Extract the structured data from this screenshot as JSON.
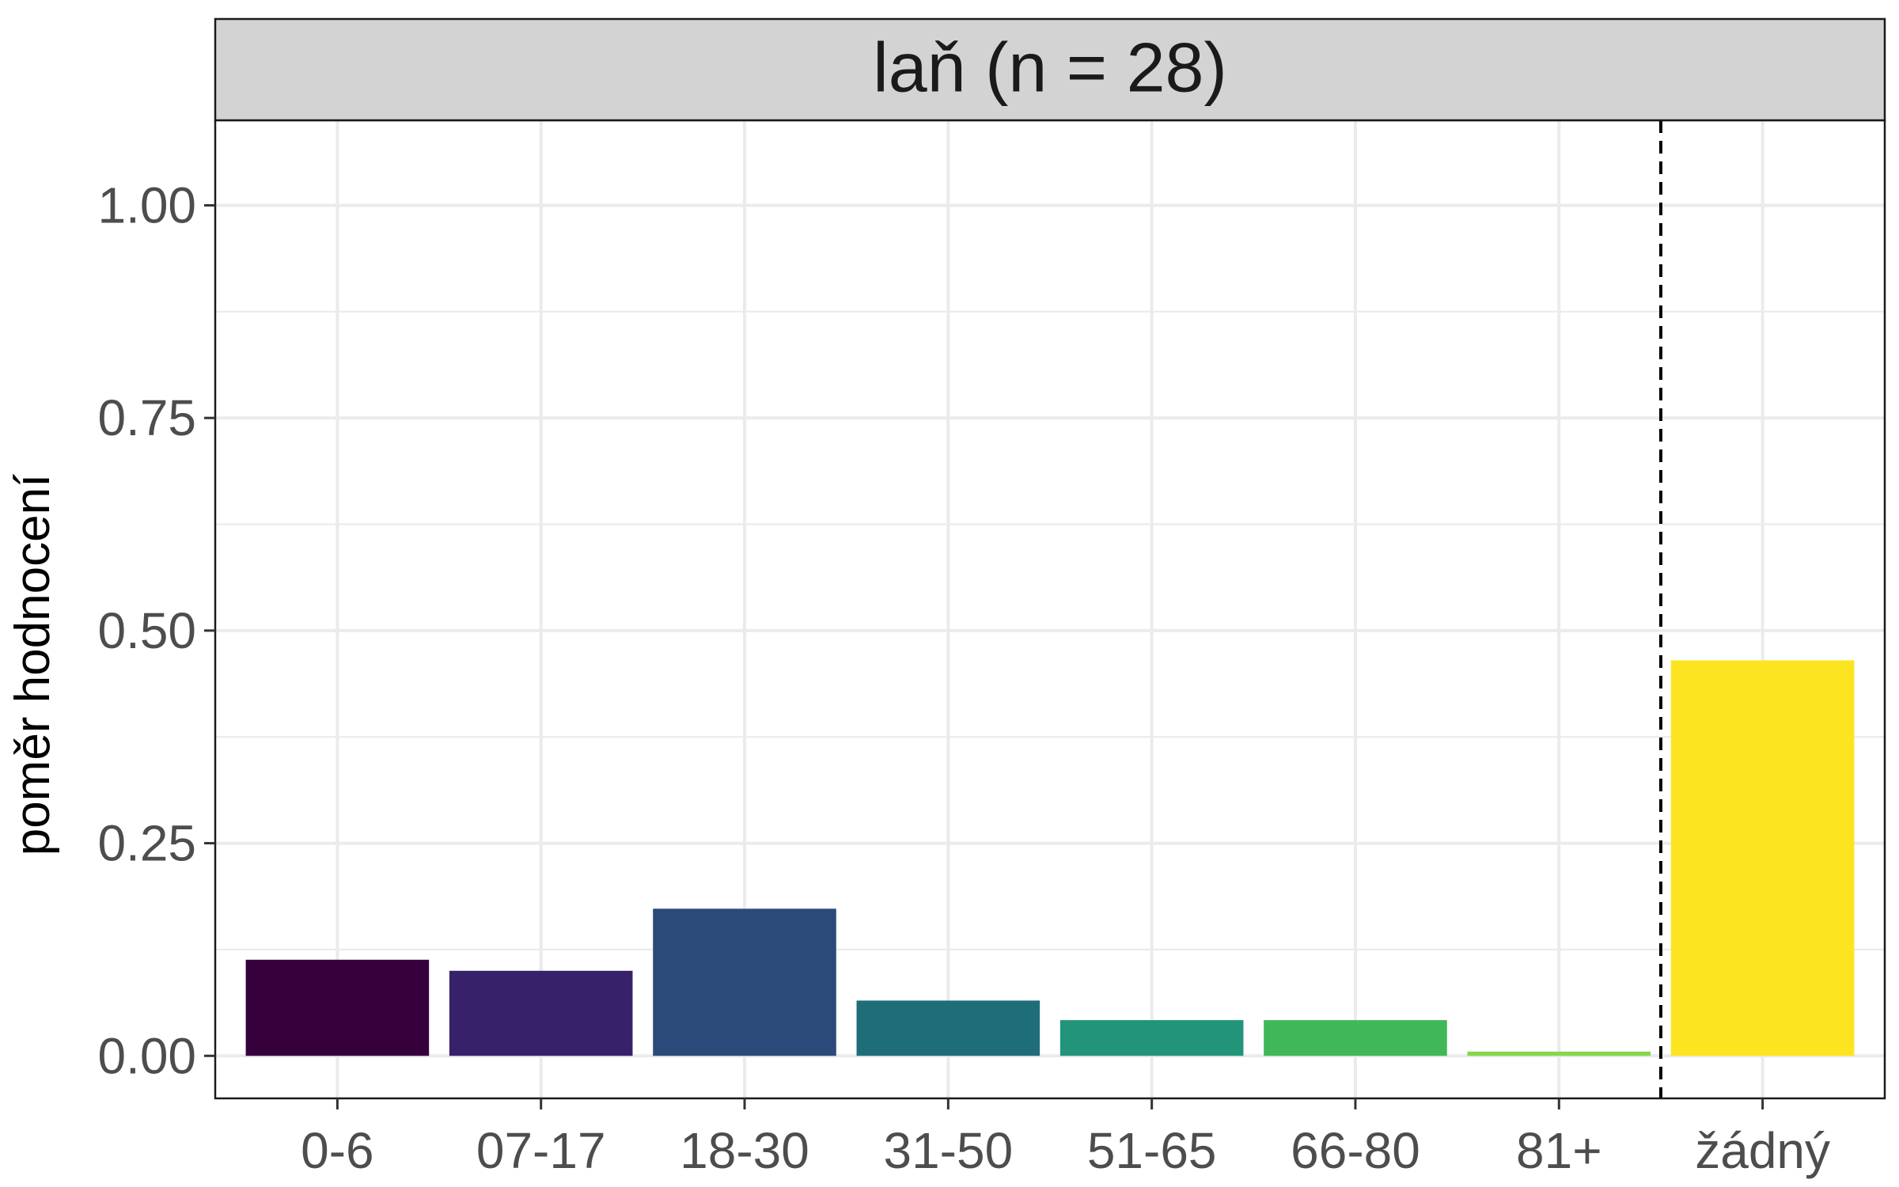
{
  "chart_data": {
    "type": "bar",
    "title": "laň (n = 28)",
    "xlabel": "",
    "ylabel": "poměr hodnocení",
    "categories": [
      "0-6",
      "07-17",
      "18-30",
      "31-50",
      "51-65",
      "66-80",
      "81+",
      "žádný"
    ],
    "values": [
      0.113,
      0.1,
      0.173,
      0.065,
      0.042,
      0.042,
      0.005,
      0.465
    ],
    "colors": [
      "#36003c",
      "#37216a",
      "#2c4a79",
      "#206d7a",
      "#21947a",
      "#40b857",
      "#87d74a",
      "#fce421"
    ],
    "ylim": [
      -0.05,
      1.1
    ],
    "yticks": [
      0,
      0.25,
      0.5,
      0.75,
      1.0
    ],
    "ytick_labels": [
      "0.00",
      "0.25",
      "0.50",
      "0.75",
      "1.00"
    ],
    "reference_line": {
      "between": [
        "81+",
        "žádný"
      ],
      "style": "dashed",
      "color": "#000000"
    },
    "grid": true,
    "legend": "none",
    "strip_background": "#d3d3d3",
    "panel_border": "#1a1a1a",
    "grid_color": "#ebebeb"
  }
}
